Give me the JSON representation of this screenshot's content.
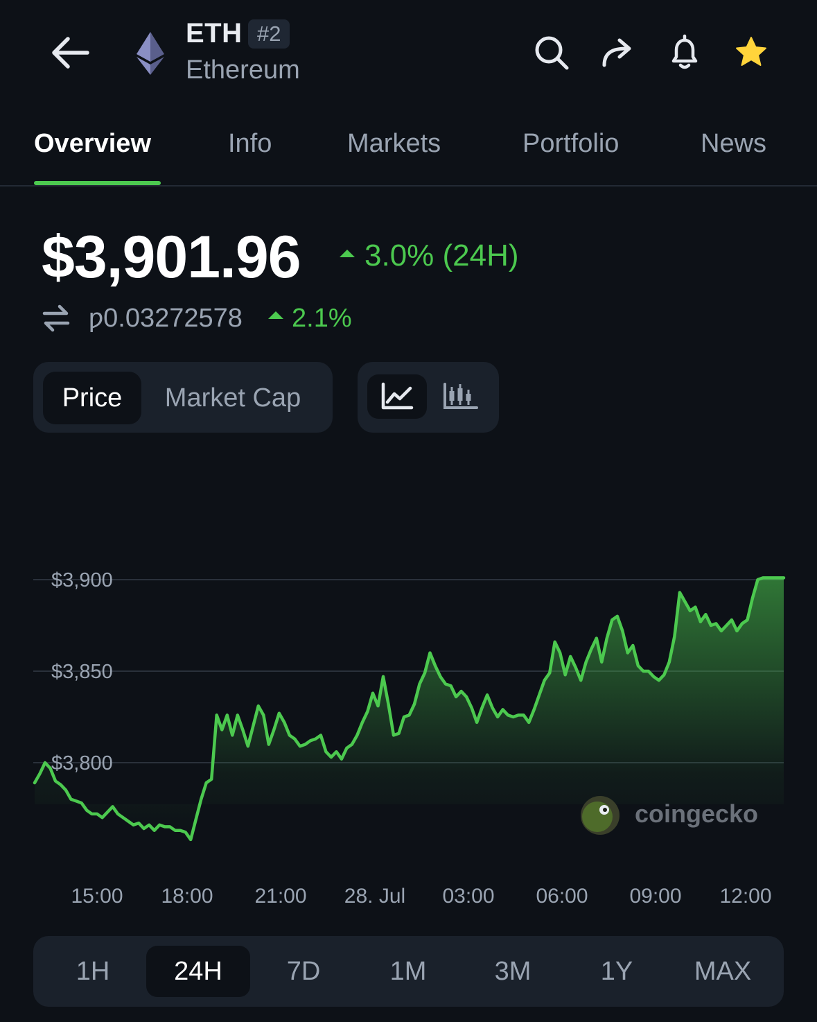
{
  "header": {
    "back_icon": "arrow-left-icon",
    "coin_logo": "ethereum-logo",
    "symbol": "ETH",
    "rank": "#2",
    "name": "Ethereum",
    "actions": [
      "search-icon",
      "share-icon",
      "bell-icon",
      "star-icon"
    ],
    "star_color": "#ffd43b"
  },
  "tabs": [
    {
      "label": "Overview",
      "active": true
    },
    {
      "label": "Info",
      "active": false
    },
    {
      "label": "Markets",
      "active": false
    },
    {
      "label": "Portfolio",
      "active": false
    },
    {
      "label": "News",
      "active": false
    }
  ],
  "price": {
    "usd": "$3,901.96",
    "change_24h": "3.0% (24H)",
    "btc": "ƿ0.03272578",
    "btc_change": "2.1%"
  },
  "toggles": {
    "price_label": "Price",
    "market_cap_label": "Market Cap",
    "selected_metric": "Price",
    "chart_types": [
      "line-chart-icon",
      "candlestick-icon"
    ],
    "selected_chart_type": "line-chart-icon"
  },
  "watermark": {
    "text": "coingecko",
    "logo": "coingecko-logo"
  },
  "colors": {
    "accent_green": "#4cc94f",
    "background": "#0d1117",
    "panel": "#1a212b",
    "muted_text": "#9aa4b2"
  },
  "chart_data": {
    "type": "area",
    "ylim": [
      3760,
      3905
    ],
    "y_ticks": [
      3800,
      3850,
      3900
    ],
    "y_tick_labels": [
      "$3,800",
      "$3,850",
      "$3,900"
    ],
    "x_tick_labels": [
      "15:00",
      "18:00",
      "21:00",
      "28. Jul",
      "03:00",
      "06:00",
      "09:00",
      "12:00"
    ],
    "grid": true,
    "x": [
      0,
      1,
      2,
      3,
      4,
      5,
      6,
      7,
      8,
      9,
      10,
      11,
      12,
      13,
      14,
      15,
      16,
      17,
      18,
      19,
      20,
      21,
      22,
      23,
      24,
      25,
      26,
      27,
      28,
      29,
      30,
      31,
      32,
      33,
      34,
      35,
      36,
      37,
      38,
      39,
      40,
      41,
      42,
      43,
      44,
      45,
      46,
      47,
      48,
      49,
      50,
      51,
      52,
      53,
      54,
      55,
      56,
      57,
      58,
      59,
      60,
      61,
      62,
      63,
      64,
      65,
      66,
      67,
      68,
      69,
      70,
      71,
      72,
      73,
      74,
      75,
      76,
      77,
      78,
      79,
      80,
      81,
      82,
      83,
      84,
      85,
      86,
      87,
      88,
      89,
      90,
      91,
      92,
      93,
      94,
      95,
      96,
      97,
      98,
      99,
      100,
      101,
      102,
      103,
      104,
      105,
      106,
      107,
      108,
      109,
      110,
      111,
      112,
      113,
      114,
      115,
      116,
      117,
      118,
      119,
      120,
      121,
      122,
      123,
      124,
      125,
      126,
      127,
      128,
      129,
      130,
      131,
      132,
      133,
      134,
      135,
      136,
      137,
      138,
      139,
      140,
      141,
      142,
      143,
      144
    ],
    "values": [
      3789,
      3794,
      3800,
      3797,
      3790,
      3788,
      3785,
      3780,
      3779,
      3778,
      3774,
      3772,
      3772,
      3770,
      3773,
      3776,
      3772,
      3770,
      3768,
      3766,
      3767,
      3764,
      3766,
      3763,
      3766,
      3765,
      3765,
      3763,
      3763,
      3762,
      3758,
      3769,
      3780,
      3789,
      3791,
      3826,
      3818,
      3826,
      3815,
      3826,
      3818,
      3809,
      3820,
      3831,
      3826,
      3810,
      3818,
      3827,
      3822,
      3815,
      3813,
      3809,
      3810,
      3812,
      3813,
      3815,
      3806,
      3803,
      3806,
      3802,
      3808,
      3810,
      3815,
      3822,
      3828,
      3838,
      3831,
      3847,
      3832,
      3815,
      3816,
      3825,
      3826,
      3832,
      3843,
      3849,
      3860,
      3853,
      3847,
      3843,
      3842,
      3836,
      3839,
      3836,
      3830,
      3822,
      3830,
      3837,
      3830,
      3825,
      3829,
      3826,
      3825,
      3826,
      3826,
      3822,
      3829,
      3837,
      3845,
      3849,
      3866,
      3860,
      3848,
      3858,
      3852,
      3845,
      3855,
      3862,
      3868,
      3855,
      3868,
      3878,
      3880,
      3872,
      3860,
      3864,
      3853,
      3850,
      3850,
      3847,
      3845,
      3848,
      3855,
      3869,
      3893,
      3888,
      3883,
      3885,
      3877,
      3881,
      3875,
      3876,
      3872,
      3875,
      3878,
      3872,
      3876,
      3878,
      3890,
      3900,
      3901,
      3901,
      3901,
      3901,
      3901
    ]
  }
}
